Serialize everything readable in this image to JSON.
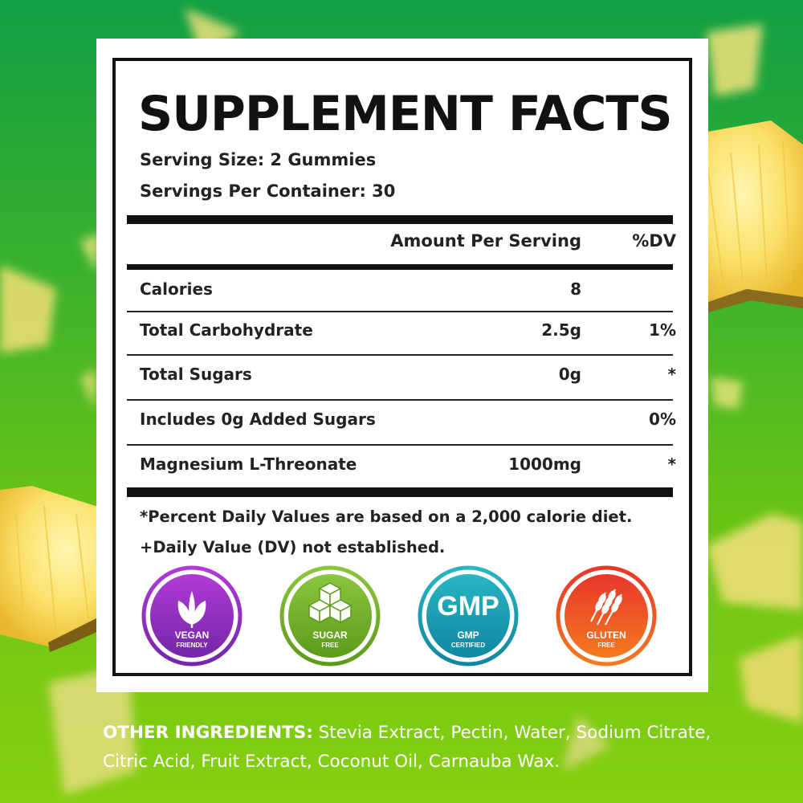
{
  "panel": {
    "title": "SUPPLEMENT FACTS",
    "serving_size": "Serving Size: 2 Gummies",
    "servings_per_container": "Servings Per Container: 30"
  },
  "table": {
    "header_amount": "Amount Per Serving",
    "header_dv": "%DV",
    "rows": [
      {
        "name": "Calories",
        "amount": "8",
        "dv": ""
      },
      {
        "name": "Total Carbohydrate",
        "amount": "2.5g",
        "dv": "1%"
      },
      {
        "name": "Total Sugars",
        "amount": "0g",
        "dv": "*"
      },
      {
        "name": "Includes 0g Added Sugars",
        "amount": "",
        "dv": "0%"
      },
      {
        "name": "Magnesium L-Threonate",
        "amount": "1000mg",
        "dv": "*"
      }
    ]
  },
  "footnotes": {
    "line1": "*Percent Daily Values are based on a 2,000 calorie diet.",
    "line2": "+Daily Value (DV) not established."
  },
  "badges": [
    {
      "line1": "VEGAN",
      "line2": "FRIENDLY",
      "icon": "leaf-icon",
      "color_top": "#b23ad6",
      "color_bottom": "#7426a8"
    },
    {
      "line1": "SUGAR",
      "line2": "FREE",
      "icon": "sugar-cubes-icon",
      "color_top": "#8cc63f",
      "color_bottom": "#5c9a1b"
    },
    {
      "line1": "GMP",
      "line2": "CERTIFIED",
      "icon": "gmp-icon",
      "mark": "GMP",
      "color_top": "#26b6c4",
      "color_bottom": "#1186a0"
    },
    {
      "line1": "GLUTEN",
      "line2": "FREE",
      "icon": "wheat-icon",
      "color_top": "#e8362a",
      "color_bottom": "#f47a1f"
    }
  ],
  "other_ingredients": {
    "label": "OTHER INGREDIENTS:",
    "text": " Stevia Extract, Pectin, Water, Sodium Citrate, Citric Acid, Fruit Extract, Coconut Oil, Carnauba Wax."
  },
  "colors": {
    "background_top": "#129f45",
    "background_bottom": "#86cf11",
    "panel": "#ffffff",
    "ink": "#111111"
  }
}
